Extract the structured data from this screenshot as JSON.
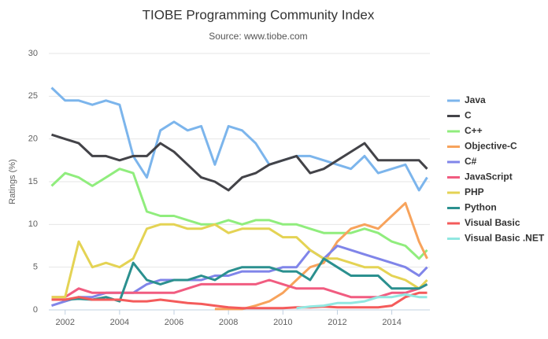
{
  "chart_data": {
    "type": "line",
    "title": "TIOBE Programming Community Index",
    "subtitle": "Source: www.tiobe.com",
    "y_label": "Ratings (%)",
    "x": [
      2001.5,
      2002,
      2002.5,
      2003,
      2003.5,
      2004,
      2004.5,
      2005,
      2005.5,
      2006,
      2006.5,
      2007,
      2007.5,
      2008,
      2008.5,
      2009,
      2009.5,
      2010,
      2010.5,
      2011,
      2011.5,
      2012,
      2012.5,
      2013,
      2013.5,
      2014,
      2014.5,
      2015,
      2015.3
    ],
    "xlim": [
      2001.4,
      2015.4
    ],
    "xticks": [
      2002,
      2004,
      2006,
      2008,
      2010,
      2012,
      2014
    ],
    "ylim": [
      0,
      30
    ],
    "yticks": [
      0,
      5,
      10,
      15,
      20,
      25,
      30
    ],
    "grid": true,
    "legend": "right",
    "series": [
      {
        "name": "Java",
        "color": "#7cb5ec",
        "values": [
          26,
          24.5,
          24.5,
          24,
          24.5,
          24,
          18,
          15.5,
          21,
          22,
          21,
          21.5,
          17,
          21.5,
          21,
          19.5,
          17,
          17.5,
          18,
          18,
          17.5,
          17,
          16.5,
          18,
          16,
          16.5,
          17,
          14,
          15.5
        ]
      },
      {
        "name": "C",
        "color": "#434348",
        "values": [
          20.5,
          20,
          19.5,
          18,
          18,
          17.5,
          18,
          18,
          19.5,
          18.5,
          17,
          15.5,
          15,
          14,
          15.5,
          16,
          17,
          17.5,
          18,
          16,
          16.5,
          17.5,
          18.5,
          19.5,
          17.5,
          17.5,
          17.5,
          17.5,
          16.5
        ]
      },
      {
        "name": "C++",
        "color": "#90ed7d",
        "values": [
          14.5,
          16,
          15.5,
          14.5,
          15.5,
          16.5,
          16,
          11.5,
          11,
          11,
          10.5,
          10,
          10,
          10.5,
          10,
          10.5,
          10.5,
          10,
          10,
          9.5,
          9,
          9,
          9,
          9.5,
          9,
          8,
          7.5,
          6,
          7
        ]
      },
      {
        "name": "Objective-C",
        "color": "#f7a35c",
        "values": [
          null,
          null,
          null,
          null,
          null,
          null,
          null,
          null,
          null,
          null,
          null,
          null,
          0.1,
          0.1,
          0.1,
          0.5,
          1,
          2,
          3.5,
          5,
          5.5,
          8,
          9.5,
          10,
          9.5,
          11,
          12.5,
          8,
          6
        ]
      },
      {
        "name": "C#",
        "color": "#8085e9",
        "values": [
          0.5,
          1,
          1.5,
          1.5,
          2,
          2,
          2,
          3,
          3.5,
          3.5,
          3.5,
          3.5,
          4,
          4,
          4.5,
          4.5,
          4.5,
          5,
          5,
          7,
          6,
          7.5,
          7,
          6.5,
          6,
          5.5,
          5,
          4,
          5
        ]
      },
      {
        "name": "JavaScript",
        "color": "#f15c80",
        "values": [
          1.5,
          1.5,
          2.5,
          2,
          2,
          2,
          2,
          2,
          2,
          2,
          2.5,
          3,
          3,
          3,
          3,
          3,
          3.5,
          3,
          2.5,
          2.5,
          2.5,
          2,
          1.5,
          1.5,
          1.5,
          2,
          2,
          2.5,
          3
        ]
      },
      {
        "name": "PHP",
        "color": "#e4d354",
        "values": [
          1.5,
          1.5,
          8,
          5,
          5.5,
          5,
          6,
          9.5,
          10,
          10,
          9.5,
          9.5,
          10,
          9,
          9.5,
          9.5,
          9.5,
          8.5,
          8.5,
          7,
          6,
          6,
          5.5,
          5,
          5,
          4,
          3.5,
          2.5,
          3.5
        ]
      },
      {
        "name": "Python",
        "color": "#2b908f",
        "values": [
          1.2,
          1.2,
          1.3,
          1.2,
          1.5,
          1,
          5.5,
          3.5,
          3,
          3.5,
          3.5,
          4,
          3.5,
          4.5,
          5,
          5,
          5,
          4.5,
          4.5,
          3.5,
          6,
          5,
          4,
          4,
          4,
          2.5,
          2.5,
          2.5,
          3
        ]
      },
      {
        "name": "Visual Basic",
        "color": "#f45b5b",
        "values": [
          1.2,
          1.2,
          1.5,
          1.2,
          1.2,
          1.2,
          1,
          1,
          1.2,
          1,
          0.8,
          0.7,
          0.5,
          0.3,
          0.2,
          0.2,
          0.2,
          0.2,
          0.3,
          0.3,
          0.4,
          0.3,
          0.3,
          0.3,
          0.3,
          0.5,
          1.5,
          2,
          2
        ]
      },
      {
        "name": "Visual Basic .NET",
        "color": "#91e8e1",
        "values": [
          null,
          null,
          null,
          null,
          null,
          null,
          null,
          null,
          null,
          null,
          null,
          null,
          null,
          null,
          null,
          null,
          null,
          null,
          0.2,
          0.4,
          0.5,
          0.8,
          0.8,
          1,
          1.5,
          1.5,
          1.8,
          1.5,
          1.5
        ]
      }
    ]
  }
}
